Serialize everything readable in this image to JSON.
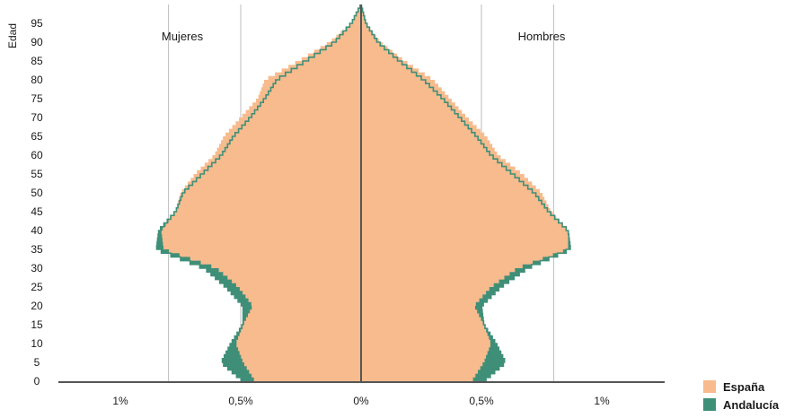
{
  "chart_data": {
    "type": "bar",
    "subtype": "population-pyramid",
    "ylabel": "Edad",
    "side_labels": {
      "left": "Mujeres",
      "right": "Hombres"
    },
    "xlim": [
      -1,
      1
    ],
    "ylim": [
      0,
      100
    ],
    "x_ticks": [
      {
        "value": -1,
        "label": "1%"
      },
      {
        "value": -0.5,
        "label": "0,5%"
      },
      {
        "value": 0,
        "label": "0%"
      },
      {
        "value": 0.5,
        "label": "0,5%"
      },
      {
        "value": 1,
        "label": "1%"
      }
    ],
    "y_ticks": [
      0,
      5,
      10,
      15,
      20,
      25,
      30,
      35,
      40,
      45,
      50,
      55,
      60,
      65,
      70,
      75,
      80,
      85,
      90,
      95
    ],
    "grid": "vertical",
    "legend_position": "bottom-right",
    "colors": {
      "espana": "#f7bb8e",
      "andalucia": "#3f8f78",
      "axis": "#555555",
      "grid": "#bdbdbd"
    },
    "series": [
      {
        "name": "España",
        "ages": [
          0,
          5,
          10,
          15,
          20,
          25,
          30,
          35,
          40,
          45,
          50,
          55,
          60,
          65,
          70,
          75,
          80,
          85,
          90,
          95,
          100
        ],
        "women": [
          0.44,
          0.49,
          0.52,
          0.49,
          0.45,
          0.51,
          0.6,
          0.82,
          0.83,
          0.77,
          0.75,
          0.69,
          0.61,
          0.57,
          0.5,
          0.43,
          0.4,
          0.26,
          0.13,
          0.04,
          0.0
        ],
        "men": [
          0.46,
          0.51,
          0.54,
          0.51,
          0.47,
          0.54,
          0.65,
          0.86,
          0.86,
          0.79,
          0.75,
          0.67,
          0.57,
          0.52,
          0.44,
          0.37,
          0.3,
          0.18,
          0.08,
          0.02,
          0.0
        ]
      },
      {
        "name": "Andalucía",
        "ages": [
          0,
          5,
          10,
          15,
          20,
          25,
          30,
          35,
          40,
          45,
          50,
          55,
          60,
          65,
          70,
          75,
          80,
          85,
          90,
          95,
          100
        ],
        "women": [
          0.49,
          0.58,
          0.54,
          0.49,
          0.49,
          0.56,
          0.65,
          0.85,
          0.84,
          0.77,
          0.74,
          0.66,
          0.58,
          0.53,
          0.46,
          0.4,
          0.35,
          0.23,
          0.11,
          0.04,
          0.0
        ],
        "men": [
          0.51,
          0.6,
          0.56,
          0.51,
          0.5,
          0.58,
          0.69,
          0.87,
          0.86,
          0.78,
          0.72,
          0.63,
          0.54,
          0.48,
          0.41,
          0.34,
          0.26,
          0.16,
          0.07,
          0.02,
          0.0
        ]
      }
    ]
  }
}
